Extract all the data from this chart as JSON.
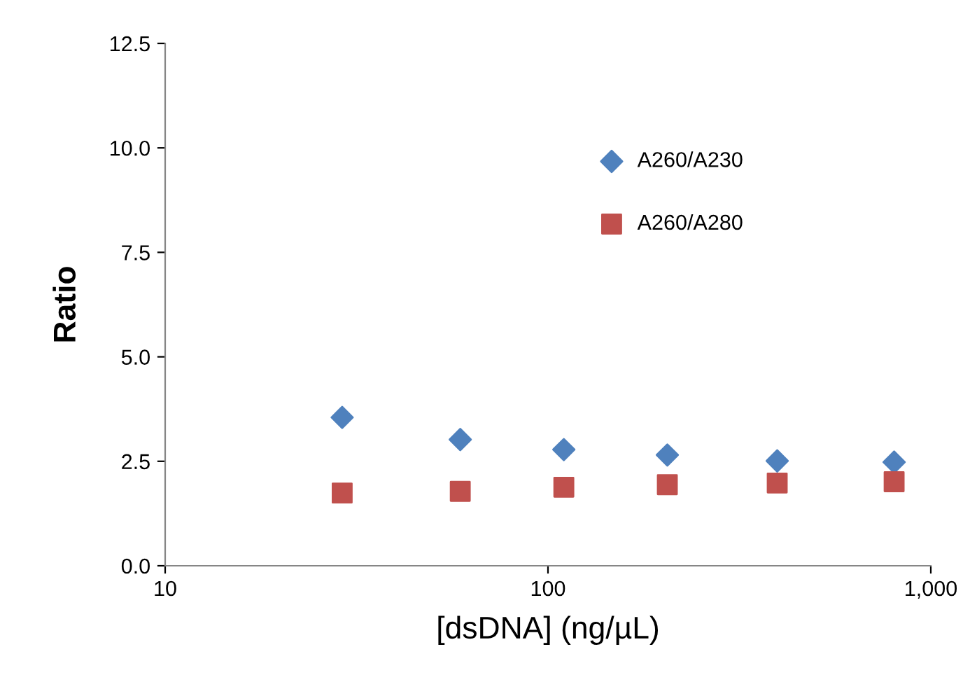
{
  "chart_data": {
    "type": "scatter",
    "xlabel": "[dsDNA] (ng/µL)",
    "ylabel": "Ratio",
    "log": "x",
    "xlim": [
      10,
      1000
    ],
    "xticks": [
      10,
      100,
      {
        "value": 1000,
        "label": "1,000"
      }
    ],
    "ylim": [
      0,
      12.5
    ],
    "yticks": [
      {
        "value": 0,
        "label": "0.0"
      },
      2.5,
      {
        "value": 5,
        "label": "5.0"
      },
      7.5,
      {
        "value": 10,
        "label": "10.0"
      },
      12.5
    ],
    "x": [
      29,
      59,
      110,
      205,
      397,
      802
    ],
    "series": [
      {
        "name": "A260/A230",
        "color": "#4f81bd",
        "marker": "diamond",
        "values": [
          3.55,
          3.02,
          2.78,
          2.65,
          2.51,
          2.48
        ]
      },
      {
        "name": "A260/A280",
        "color": "#c0504d",
        "marker": "square",
        "values": [
          1.74,
          1.78,
          1.88,
          1.94,
          1.98,
          2.01
        ]
      }
    ],
    "grid": false,
    "legend": "top right"
  }
}
